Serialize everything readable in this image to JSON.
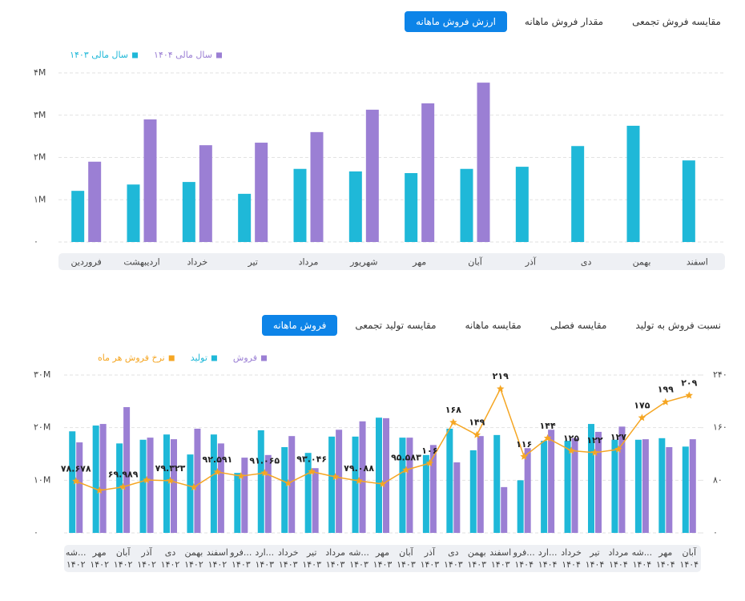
{
  "tabs": [
    {
      "items": [
        "ارزش فروش ماهانه",
        "مقدار فروش ماهانه",
        "مقایسه فروش تجمعی"
      ],
      "active": 0
    },
    {
      "items": [
        "فروش ماهانه",
        "مقایسه تولید تجمعی",
        "مقایسه ماهانه",
        "مقایسه فصلی",
        "نسبت فروش به تولید"
      ],
      "active": 0
    }
  ],
  "chart_data": [
    {
      "type": "bar",
      "categories": [
        "فروردین",
        "اردیبهشت",
        "خرداد",
        "تیر",
        "مرداد",
        "شهریور",
        "مهر",
        "آبان",
        "آذر",
        "دی",
        "بهمن",
        "اسفند"
      ],
      "series": [
        {
          "name": "سال مالی ۱۴۰۴",
          "color": "#9b7fd4",
          "values": [
            1900000,
            2900000,
            2290000,
            2350000,
            2600000,
            3130000,
            3280000,
            3770000,
            null,
            null,
            null,
            null
          ]
        },
        {
          "name": "سال مالی ۱۴۰۳",
          "color": "#1fb8d8",
          "values": [
            1210000,
            1360000,
            1420000,
            1140000,
            1730000,
            1670000,
            1630000,
            1730000,
            1780000,
            2270000,
            2750000,
            1930000
          ]
        }
      ],
      "ylim": [
        0,
        4000000
      ],
      "yticks": [
        {
          "value": 0,
          "label": "۰"
        },
        {
          "value": 1000000,
          "label": "۱M"
        },
        {
          "value": 2000000,
          "label": "۲M"
        },
        {
          "value": 3000000,
          "label": "۳M"
        },
        {
          "value": 4000000,
          "label": "۴M"
        }
      ],
      "grid": true
    },
    {
      "type": "combo",
      "categories": [
        [
          "شه...",
          "۱۴۰۲"
        ],
        [
          "مهر",
          "۱۴۰۲"
        ],
        [
          "آبان",
          "۱۴۰۲"
        ],
        [
          "آذر",
          "۱۴۰۲"
        ],
        [
          "دی",
          "۱۴۰۲"
        ],
        [
          "بهمن",
          "۱۴۰۲"
        ],
        [
          "اسفند",
          "۱۴۰۲"
        ],
        [
          "فرو...",
          "۱۴۰۳"
        ],
        [
          "ارد...",
          "۱۴۰۳"
        ],
        [
          "خرداد",
          "۱۴۰۳"
        ],
        [
          "تیر",
          "۱۴۰۳"
        ],
        [
          "مرداد",
          "۱۴۰۳"
        ],
        [
          "شه...",
          "۱۴۰۳"
        ],
        [
          "مهر",
          "۱۴۰۳"
        ],
        [
          "آبان",
          "۱۴۰۳"
        ],
        [
          "آذر",
          "۱۴۰۳"
        ],
        [
          "دی",
          "۱۴۰۳"
        ],
        [
          "بهمن",
          "۱۴۰۳"
        ],
        [
          "اسفند",
          "۱۴۰۳"
        ],
        [
          "فرو...",
          "۱۴۰۴"
        ],
        [
          "ارد...",
          "۱۴۰۴"
        ],
        [
          "خرداد",
          "۱۴۰۴"
        ],
        [
          "تیر",
          "۱۴۰۴"
        ],
        [
          "مرداد",
          "۱۴۰۴"
        ],
        [
          "شه...",
          "۱۴۰۴"
        ],
        [
          "مهر",
          "۱۴۰۴"
        ],
        [
          "آبان",
          "۱۴۰۴"
        ]
      ],
      "series": [
        {
          "name": "فروش",
          "type": "bar",
          "color": "#9b7fd4",
          "values": [
            17200000,
            20700000,
            23900000,
            18100000,
            17800000,
            19800000,
            17000000,
            14300000,
            14800000,
            18400000,
            12300000,
            19600000,
            21200000,
            21800000,
            18100000,
            16700000,
            13400000,
            18400000,
            8700000,
            16100000,
            19600000,
            18000000,
            19200000,
            20200000,
            17800000,
            16300000,
            17800000
          ]
        },
        {
          "name": "تولید",
          "type": "bar",
          "color": "#1fb8d8",
          "values": [
            19300000,
            20400000,
            17000000,
            17700000,
            18700000,
            14900000,
            18700000,
            11400000,
            19500000,
            16300000,
            15200000,
            18300000,
            18300000,
            21900000,
            18100000,
            14800000,
            19800000,
            15700000,
            18600000,
            10000000,
            17500000,
            17500000,
            20700000,
            17700000,
            17700000,
            18000000,
            16400000
          ]
        },
        {
          "name": "نرخ فروش هر ماه",
          "type": "line",
          "axis": "y2",
          "color": "#f5a623",
          "values": [
            78.678,
            64.5,
            69.989,
            80.4,
            79.323,
            69.4,
            92.591,
            86.4,
            91.065,
            75.5,
            93.046,
            85.2,
            79.088,
            74.3,
            95.583,
            106,
            168,
            149,
            219,
            116,
            144,
            125,
            122,
            127,
            175,
            199,
            209
          ],
          "value_labels": [
            "۷۸.۶۷۸",
            null,
            "۶۹.۹۸۹",
            null,
            "۷۹.۳۲۳",
            null,
            "۹۲.۵۹۱",
            null,
            "۹۱.۰۶۵",
            null,
            "۹۳.۰۴۶",
            null,
            "۷۹.۰۸۸",
            null,
            "۹۵.۵۸۳",
            "۱۰۶",
            "۱۶۸",
            "۱۴۹",
            "۲۱۹",
            "۱۱۶",
            "۱۴۴",
            "۱۲۵",
            "۱۲۲",
            "۱۲۷",
            "۱۷۵",
            "۱۹۹",
            "۲۰۹"
          ]
        }
      ],
      "ylim": [
        0,
        30000000
      ],
      "yticks": [
        {
          "value": 0,
          "label": "۰"
        },
        {
          "value": 10000000,
          "label": "۱۰M"
        },
        {
          "value": 20000000,
          "label": "۲۰M"
        },
        {
          "value": 30000000,
          "label": "۳۰M"
        }
      ],
      "y2lim": [
        0,
        240
      ],
      "y2ticks": [
        {
          "value": 0,
          "label": "۰"
        },
        {
          "value": 80,
          "label": "۸۰"
        },
        {
          "value": 160,
          "label": "۱۶۰"
        },
        {
          "value": 240,
          "label": "۲۴۰"
        }
      ],
      "grid": true
    }
  ]
}
